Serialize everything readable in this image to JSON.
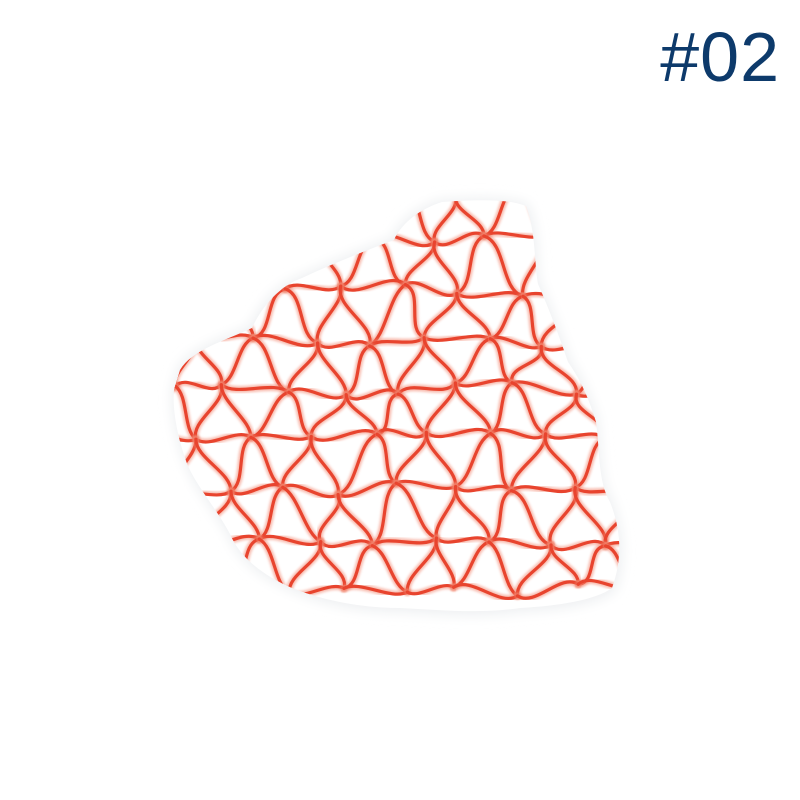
{
  "label": {
    "text": "#02",
    "color": "#0d3a6b"
  },
  "object": {
    "description_icon": "mesh-sponge-icon",
    "mesh_color": "#e8442e",
    "mesh_light_color": "#f2866f",
    "fabric_color": "#ffffff",
    "fabric_shadow_color": "#eef0f2"
  }
}
